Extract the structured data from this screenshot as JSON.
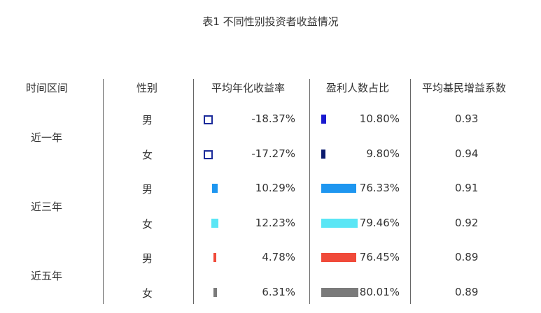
{
  "title": "表1 不同性别投资者收益情况",
  "headers": [
    "时间区间",
    "性别",
    "平均年化收益率",
    "盈利人数占比",
    "平均基民增益系数"
  ],
  "chart_data": {
    "type": "table",
    "title": "表1 不同性别投资者收益情况",
    "columns": [
      "时间区间",
      "性别",
      "平均年化收益率",
      "盈利人数占比",
      "平均基民增益系数"
    ],
    "rows": [
      {
        "period": "近一年",
        "gender": "男",
        "annual_return": -18.37,
        "return_label": "-18.37%",
        "profit_ratio": 10.8,
        "profit_label": "10.80%",
        "coef": "0.93",
        "return_color": "#1a2a9a",
        "profit_color": "#1a1ad0"
      },
      {
        "period": "",
        "gender": "女",
        "annual_return": -17.27,
        "return_label": "-17.27%",
        "profit_ratio": 9.8,
        "profit_label": "9.80%",
        "coef": "0.94",
        "return_color": "#1a2a9a",
        "profit_color": "#0a1a6e"
      },
      {
        "period": "近三年",
        "gender": "男",
        "annual_return": 10.29,
        "return_label": "10.29%",
        "profit_ratio": 76.33,
        "profit_label": "76.33%",
        "coef": "0.91",
        "return_color": "#1e96f0",
        "profit_color": "#1e96f0"
      },
      {
        "period": "",
        "gender": "女",
        "annual_return": 12.23,
        "return_label": "12.23%",
        "profit_ratio": 79.46,
        "profit_label": "79.46%",
        "coef": "0.92",
        "return_color": "#5ae6f5",
        "profit_color": "#5ae6f5"
      },
      {
        "period": "近五年",
        "gender": "男",
        "annual_return": 4.78,
        "return_label": "4.78%",
        "profit_ratio": 76.45,
        "profit_label": "76.45%",
        "coef": "0.89",
        "return_color": "#f04a3a",
        "profit_color": "#f04a3a"
      },
      {
        "period": "",
        "gender": "女",
        "annual_return": 6.31,
        "return_label": "6.31%",
        "profit_ratio": 80.01,
        "profit_label": "80.01%",
        "coef": "0.89",
        "return_color": "#7a7a7a",
        "profit_color": "#7a7a7a"
      }
    ],
    "periods": [
      "近一年",
      "近三年",
      "近五年"
    ]
  }
}
